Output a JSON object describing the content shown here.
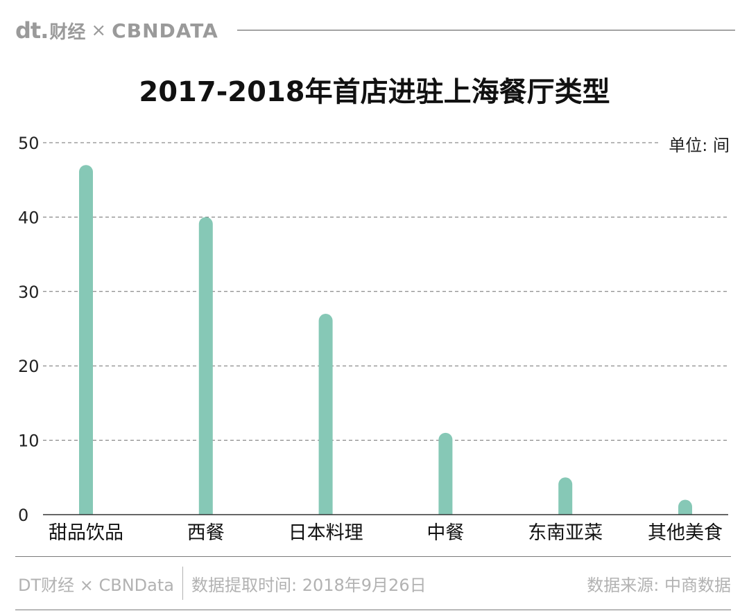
{
  "header": {
    "brand_dt": "dt.",
    "brand_cn": "财经",
    "brand_x": "×",
    "brand_cbn": "CBNDATA"
  },
  "unit_label": "单位: 间",
  "chart_data": {
    "type": "bar",
    "title": "2017-2018年首店进驻上海餐厅类型",
    "categories": [
      "甜品饮品",
      "西餐",
      "日本料理",
      "中餐",
      "东南亚菜",
      "其他美食"
    ],
    "values": [
      47,
      40,
      27,
      11,
      5,
      2
    ],
    "ylim": [
      0,
      50
    ],
    "yticks": [
      0,
      10,
      20,
      30,
      40,
      50
    ],
    "xlabel": "",
    "ylabel": "",
    "grid": true,
    "bar_color": "#86c8b6"
  },
  "footer": {
    "brand": "DT财经 × CBNData",
    "extract_time": "数据提取时间: 2018年9月26日",
    "source": "数据来源: 中商数据"
  }
}
